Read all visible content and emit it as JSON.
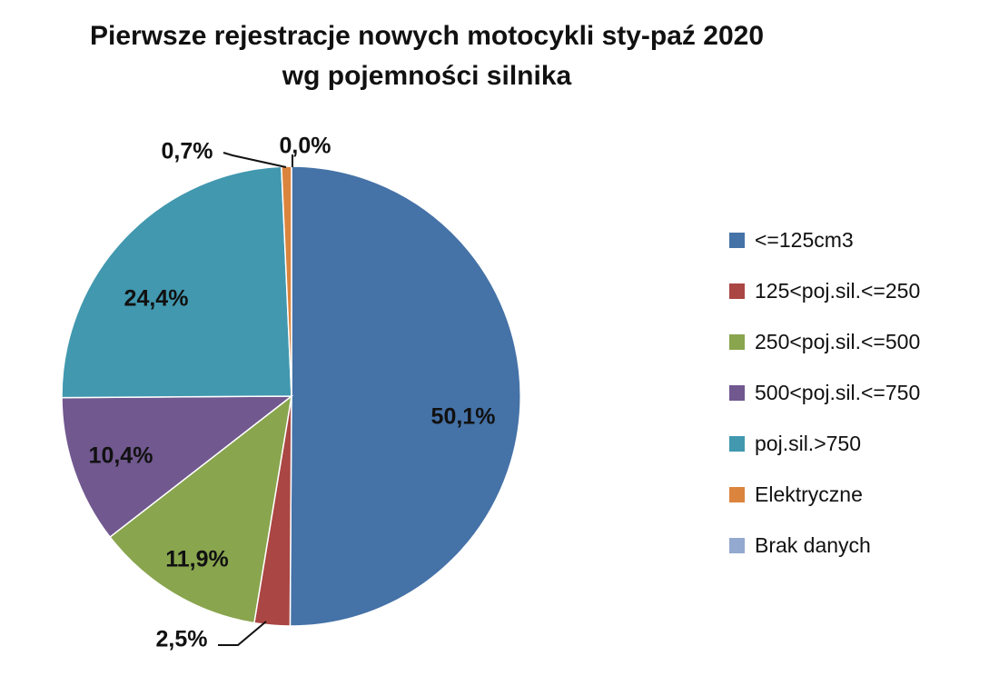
{
  "chart_data": {
    "type": "pie",
    "title": [
      "Pierwsze rejestracje nowych motocykli sty-paź 2020",
      "wg pojemności silnika"
    ],
    "categories": [
      "<=125cm3",
      "125<poj.sil.<=250",
      "250<poj.sil.<=500",
      "500<poj.sil.<=750",
      "poj.sil.>750",
      "Elektryczne",
      "Brak danych"
    ],
    "values": [
      50.1,
      2.5,
      11.9,
      10.4,
      24.4,
      0.7,
      0.0
    ],
    "labels": [
      "50,1%",
      "2,5%",
      "11,9%",
      "10,4%",
      "24,4%",
      "0,7%",
      "0,0%"
    ],
    "colors": [
      "#4572A7",
      "#AA4643",
      "#89A54E",
      "#71588F",
      "#4198AF",
      "#DB843D",
      "#93A9CF"
    ],
    "legend_position": "right",
    "start": "top",
    "direction": "clockwise"
  }
}
